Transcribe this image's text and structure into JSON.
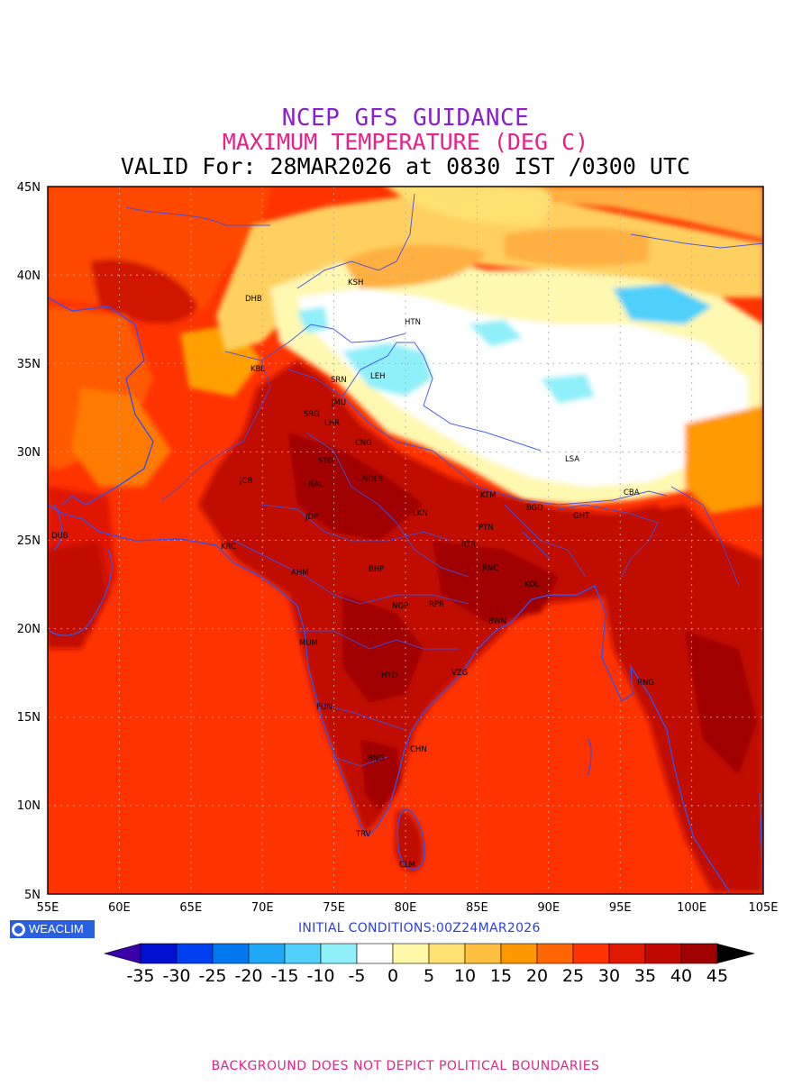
{
  "titles": {
    "line1": "NCEP GFS GUIDANCE",
    "line2": "MAXIMUM TEMPERATURE (DEG C)",
    "line3": "VALID For: 28MAR2026 at 0830 IST /0300 UTC"
  },
  "axes": {
    "lat_labels": [
      "45N",
      "40N",
      "35N",
      "30N",
      "25N",
      "20N",
      "15N",
      "10N",
      "5N"
    ],
    "lon_labels": [
      "55E",
      "60E",
      "65E",
      "70E",
      "75E",
      "80E",
      "85E",
      "90E",
      "95E",
      "100E",
      "105E"
    ]
  },
  "cities": [
    {
      "code": "KSH"
    },
    {
      "code": "DHB"
    },
    {
      "code": "HTN"
    },
    {
      "code": "KBL"
    },
    {
      "code": "SRN"
    },
    {
      "code": "LEH"
    },
    {
      "code": "JMU"
    },
    {
      "code": "SRG"
    },
    {
      "code": "LHR"
    },
    {
      "code": "CNG"
    },
    {
      "code": "STG"
    },
    {
      "code": "JCB"
    },
    {
      "code": "NAL"
    },
    {
      "code": "NDLS"
    },
    {
      "code": "LSA"
    },
    {
      "code": "KTM"
    },
    {
      "code": "CBA"
    },
    {
      "code": "JDP"
    },
    {
      "code": "LKN"
    },
    {
      "code": "BGD"
    },
    {
      "code": "GHT"
    },
    {
      "code": "DUB"
    },
    {
      "code": "PTN"
    },
    {
      "code": "KRC"
    },
    {
      "code": "RTR"
    },
    {
      "code": "AHM"
    },
    {
      "code": "BHP"
    },
    {
      "code": "RNC"
    },
    {
      "code": "KOL"
    },
    {
      "code": "NGP"
    },
    {
      "code": "RPR"
    },
    {
      "code": "BWN"
    },
    {
      "code": "MUM"
    },
    {
      "code": "HYD"
    },
    {
      "code": "VZG"
    },
    {
      "code": "RNG"
    },
    {
      "code": "PUN"
    },
    {
      "code": "CHN"
    },
    {
      "code": "BNG"
    },
    {
      "code": "TRV"
    },
    {
      "code": "CLM"
    }
  ],
  "logo_text": "WEACLIM",
  "initial_conditions": "INITIAL CONDITIONS:00Z24MAR2026",
  "colorbar": {
    "colors": [
      "#3a00a8",
      "#0010d0",
      "#0040f0",
      "#0078f0",
      "#1ea8f5",
      "#50d0fa",
      "#90f0fa",
      "#ffffff",
      "#fff8a8",
      "#ffe070",
      "#ffc040",
      "#ff9800",
      "#ff6600",
      "#ff3300",
      "#e01800",
      "#c00800",
      "#a00000",
      "#000000"
    ],
    "labels": [
      "-35",
      "-30",
      "-25",
      "-20",
      "-15",
      "-10",
      "-5",
      "0",
      "5",
      "10",
      "15",
      "20",
      "25",
      "30",
      "35",
      "40",
      "45"
    ]
  },
  "footer": "BACKGROUND DOES NOT DEPICT POLITICAL BOUNDARIES"
}
